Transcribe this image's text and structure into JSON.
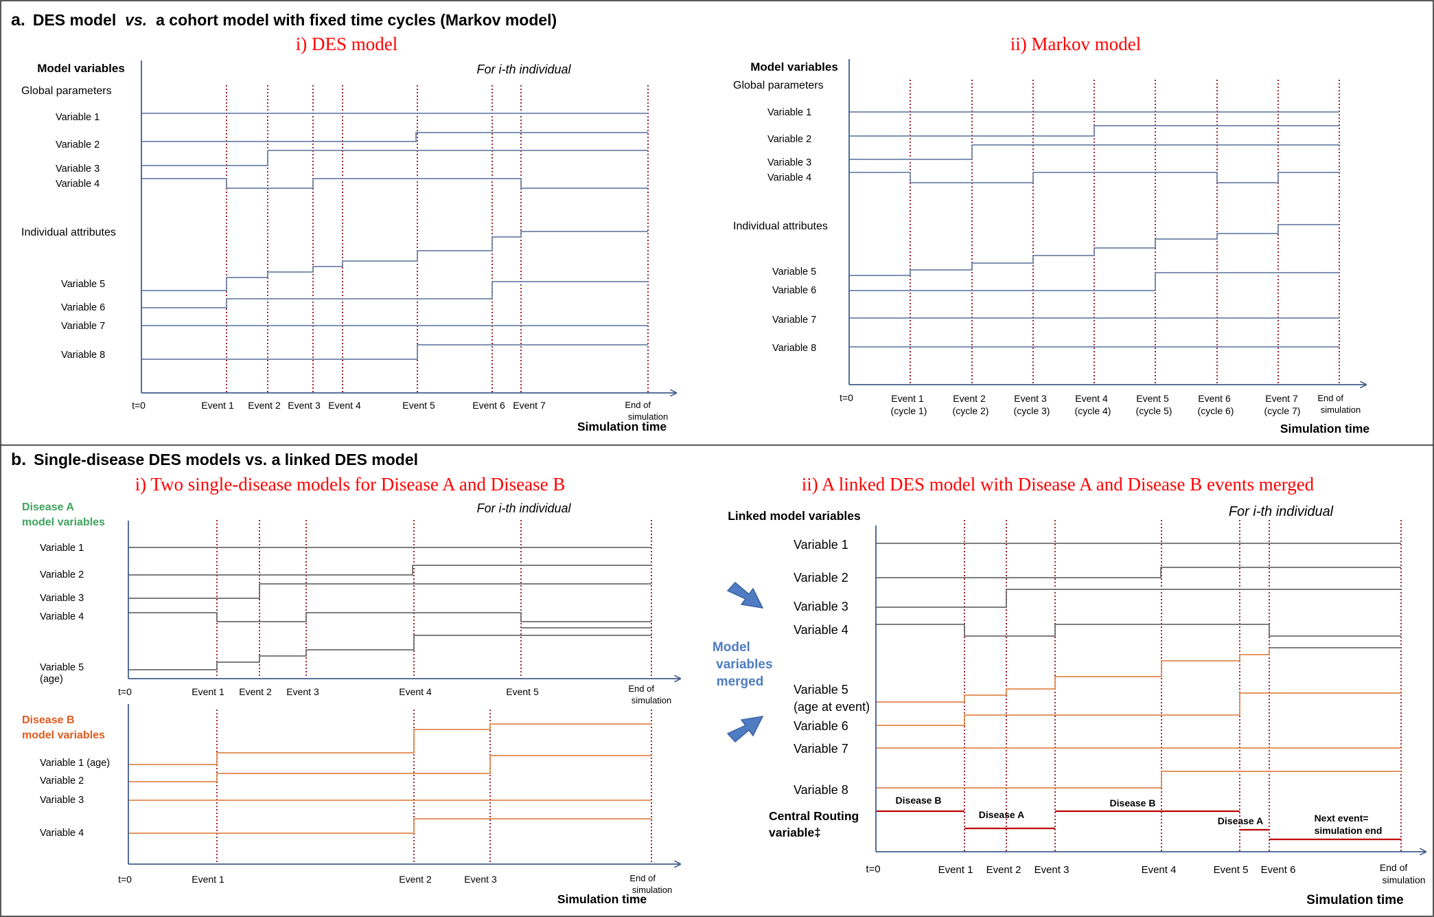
{
  "colors": {
    "axis": "#3f5d8c",
    "blue_line": "#6d82a8",
    "grey_line": "#6b6b6b",
    "orange_line": "#e0884c",
    "routing": "#c00000",
    "event_dotted": "#9a2535",
    "red_title": "#ff0000",
    "disease_a": "#3da35d",
    "disease_b": "#e05a1e",
    "merge_blue": "#4f7cc2"
  },
  "sections": {
    "a": {
      "label": "a.",
      "title": "DES model vs. a cohort model with fixed time cycles (Markov model)",
      "title_pre": "DES model",
      "title_vs": "vs.",
      "title_post": "a cohort model with fixed time cycles (Markov model)"
    },
    "b": {
      "label": "b.",
      "title": "Single-disease DES models vs. a linked DES model"
    }
  },
  "panels": {
    "des": {
      "title": "i) DES model",
      "axis_title": "Model variables",
      "individual_note": "For i-th individual",
      "group_global": "Global parameters",
      "group_individual": "Individual attributes",
      "variables": [
        "Variable 1",
        "Variable 2",
        "Variable 3",
        "Variable 4",
        "Variable 5",
        "Variable 6",
        "Variable 7",
        "Variable 8"
      ],
      "t0": "t=0",
      "events": [
        "Event 1",
        "Event 2",
        "Event 3",
        "Event 4",
        "Event 5",
        "Event 6",
        "Event 7"
      ],
      "end": [
        "End of",
        "simulation"
      ],
      "xlabel": "Simulation time"
    },
    "markov": {
      "title": "ii) Markov model",
      "axis_title": "Model variables",
      "group_global": "Global parameters",
      "group_individual": "Individual attributes",
      "variables": [
        "Variable 1",
        "Variable 2",
        "Variable 3",
        "Variable 4",
        "Variable 5",
        "Variable 6",
        "Variable 7",
        "Variable 8"
      ],
      "t0": "t=0",
      "events": [
        "Event 1",
        "Event 2",
        "Event 3",
        "Event 4",
        "Event 5",
        "Event 6",
        "Event 7"
      ],
      "cycles": [
        "(cycle 1)",
        "(cycle 2)",
        "(cycle 3)",
        "(cycle 4)",
        "(cycle 5)",
        "(cycle 6)",
        "(cycle 7)"
      ],
      "end": [
        "End of",
        "simulation"
      ],
      "xlabel": "Simulation time"
    },
    "single": {
      "title": "i) Two single-disease models for Disease A and Disease B",
      "individual_note": "For i-th individual",
      "a_title": [
        "Disease A",
        "model variables"
      ],
      "a_variables": [
        "Variable 1",
        "Variable 2",
        "Variable 3",
        "Variable 4",
        "Variable 5",
        "(age)"
      ],
      "a_events": [
        "Event 1",
        "Event 2",
        "Event 3",
        "Event 4",
        "Event 5"
      ],
      "b_title": [
        "Disease B",
        "model variables"
      ],
      "b_variables": [
        "Variable 1 (age)",
        "Variable 2",
        "Variable 3",
        "Variable 4"
      ],
      "b_events": [
        "Event 1",
        "Event 2",
        "Event 3"
      ],
      "t0": "t=0",
      "end": [
        "End of",
        "simulation"
      ],
      "xlabel": "Simulation time"
    },
    "merge": {
      "label": [
        "Model",
        "variables",
        "merged"
      ]
    },
    "linked": {
      "title": "ii) A linked DES model with Disease A and Disease B events merged",
      "axis_title": "Linked model variables",
      "individual_note": "For i-th individual",
      "variables": [
        "Variable 1",
        "Variable 2",
        "Variable 3",
        "Variable 4",
        "Variable 5",
        "(age at event)",
        "Variable 6",
        "Variable 7",
        "Variable 8"
      ],
      "routing": [
        "Central Routing",
        "variable‡"
      ],
      "routing_labels": [
        "Disease B",
        "Disease A",
        "Disease B",
        "Disease A",
        "Next event=",
        "simulation end"
      ],
      "t0": "t=0",
      "events": [
        "Event 1",
        "Event 2",
        "Event 3",
        "Event 4",
        "Event 5",
        "Event 6"
      ],
      "end": [
        "End of",
        "simulation"
      ],
      "xlabel": "Simulation time"
    }
  }
}
